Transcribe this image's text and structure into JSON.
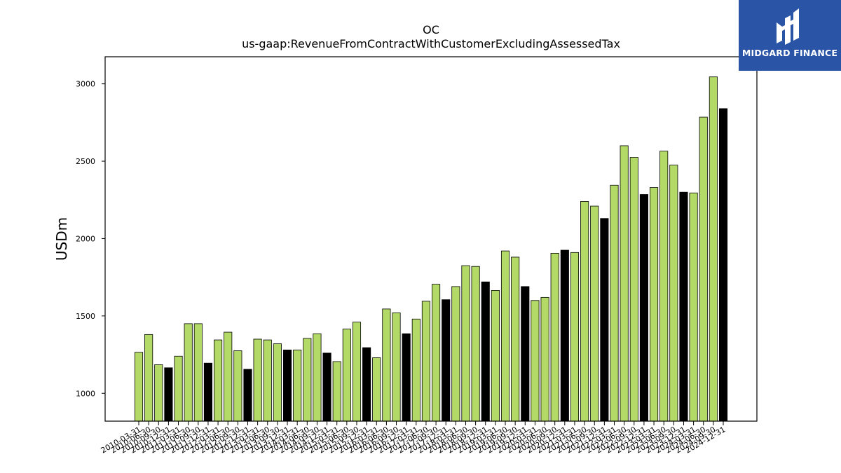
{
  "brand": {
    "name": "MIDGARD FINANCE",
    "logo_icon": "midgard-m-logo-icon",
    "color": "#2a55a6"
  },
  "chart_data": {
    "type": "bar",
    "title": "OC",
    "subtitle": "us-gaap:RevenueFromContractWithCustomerExcludingAssessedTax",
    "xlabel": "",
    "ylabel": "USDm",
    "ylim": [
      820,
      3175
    ],
    "yticks": [
      1000,
      1500,
      2000,
      2500,
      3000
    ],
    "grid": false,
    "colors": {
      "quarterly": "#b3d966",
      "annual": "#000000",
      "edge": "#000000"
    },
    "categories": [
      "2010-03-31",
      "2010-06-30",
      "2010-09-30",
      "2010-12-31",
      "2011-03-31",
      "2011-06-30",
      "2011-09-30",
      "2011-12-31",
      "2012-03-31",
      "2012-06-30",
      "2012-09-30",
      "2012-12-31",
      "2013-03-31",
      "2013-06-30",
      "2013-09-30",
      "2013-12-31",
      "2014-03-31",
      "2014-06-30",
      "2014-09-30",
      "2014-12-31",
      "2015-03-31",
      "2015-06-30",
      "2015-09-30",
      "2015-12-31",
      "2016-03-31",
      "2016-06-30",
      "2016-09-30",
      "2016-12-31",
      "2017-03-31",
      "2017-06-30",
      "2017-09-30",
      "2017-12-31",
      "2018-03-31",
      "2018-06-30",
      "2018-09-30",
      "2018-12-31",
      "2019-03-31",
      "2019-06-30",
      "2019-09-30",
      "2019-12-31",
      "2020-03-31",
      "2020-06-30",
      "2020-09-30",
      "2020-12-31",
      "2021-03-31",
      "2021-06-30",
      "2021-09-30",
      "2021-12-31",
      "2022-03-31",
      "2022-06-30",
      "2022-09-30",
      "2022-12-31",
      "2023-03-31",
      "2023-06-30",
      "2023-09-30",
      "2023-12-31",
      "2024-03-31",
      "2024-06-30",
      "2024-09-30",
      "2024-12-31"
    ],
    "values": [
      1265,
      1380,
      1185,
      1165,
      1240,
      1450,
      1450,
      1195,
      1345,
      1395,
      1275,
      1155,
      1350,
      1345,
      1320,
      1280,
      1280,
      1355,
      1385,
      1260,
      1205,
      1415,
      1460,
      1295,
      1230,
      1545,
      1520,
      1385,
      1480,
      1595,
      1705,
      1605,
      1690,
      1825,
      1820,
      1720,
      1665,
      1920,
      1880,
      1690,
      1600,
      1620,
      1905,
      1925,
      1910,
      2240,
      2210,
      2130,
      2345,
      2600,
      2525,
      2285,
      2330,
      2565,
      2475,
      2300,
      2295,
      2785,
      3045,
      2840
    ],
    "annual_flags": [
      0,
      0,
      0,
      1,
      0,
      0,
      0,
      1,
      0,
      0,
      0,
      1,
      0,
      0,
      0,
      1,
      0,
      0,
      0,
      1,
      0,
      0,
      0,
      1,
      0,
      0,
      0,
      1,
      0,
      0,
      0,
      1,
      0,
      0,
      0,
      1,
      0,
      0,
      0,
      1,
      0,
      0,
      0,
      1,
      0,
      0,
      0,
      1,
      0,
      0,
      0,
      1,
      0,
      0,
      0,
      1,
      0,
      0,
      0,
      1
    ]
  }
}
